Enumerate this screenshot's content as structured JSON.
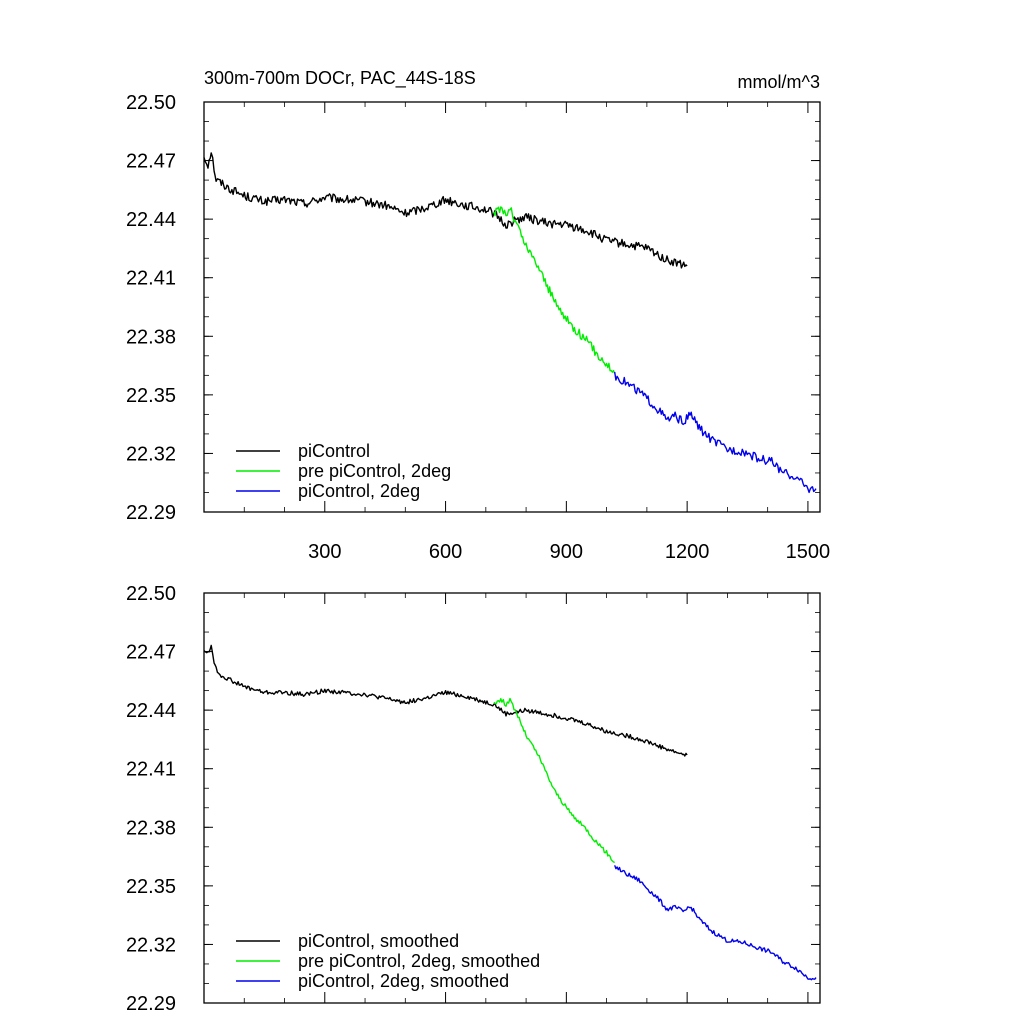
{
  "colors": {
    "black": "#000000",
    "green": "#00ee00",
    "blue": "#0000ee"
  },
  "header": {
    "title": "300m-700m DOCr, PAC_44S-18S",
    "units": "mmol/m^3"
  },
  "chart_data": [
    {
      "type": "line",
      "title": "300m-700m DOCr, PAC_44S-18S",
      "units": "mmol/m^3",
      "xlim": [
        0,
        1530
      ],
      "ylim": [
        22.29,
        22.5
      ],
      "xticks": [
        300,
        600,
        900,
        1200,
        1500
      ],
      "xtick_labels": [
        "300",
        "600",
        "900",
        "1200",
        "1500"
      ],
      "yticks": [
        22.29,
        22.32,
        22.35,
        22.38,
        22.41,
        22.44,
        22.47,
        22.5
      ],
      "ytick_labels": [
        "22.29",
        "22.32",
        "22.35",
        "22.38",
        "22.41",
        "22.44",
        "22.47",
        "22.50"
      ],
      "grid": false,
      "legend_position": "bottom-left",
      "series": [
        {
          "name": "piControl",
          "color": "#000000",
          "x": [
            0,
            10,
            18,
            25,
            30,
            40,
            60,
            100,
            150,
            200,
            250,
            300,
            350,
            400,
            450,
            500,
            550,
            600,
            650,
            700,
            720,
            750,
            780,
            800,
            850,
            900,
            950,
            1000,
            1050,
            1100,
            1150,
            1180,
            1200
          ],
          "y": [
            22.472,
            22.468,
            22.475,
            22.466,
            22.46,
            22.459,
            22.456,
            22.452,
            22.449,
            22.45,
            22.448,
            22.451,
            22.45,
            22.449,
            22.447,
            22.443,
            22.446,
            22.45,
            22.447,
            22.445,
            22.443,
            22.437,
            22.44,
            22.441,
            22.438,
            22.437,
            22.434,
            22.429,
            22.427,
            22.425,
            22.419,
            22.417,
            22.416
          ]
        },
        {
          "name": "pre piControl, 2deg",
          "color": "#00ee00",
          "x": [
            720,
            740,
            750,
            760,
            770,
            780,
            800,
            830,
            850,
            870,
            900,
            920,
            950,
            980,
            1000,
            1020
          ],
          "y": [
            22.443,
            22.446,
            22.442,
            22.446,
            22.44,
            22.436,
            22.426,
            22.416,
            22.407,
            22.398,
            22.389,
            22.384,
            22.378,
            22.37,
            22.366,
            22.361
          ]
        },
        {
          "name": "piControl, 2deg",
          "color": "#0000ee",
          "x": [
            1020,
            1050,
            1080,
            1100,
            1130,
            1150,
            1170,
            1190,
            1210,
            1230,
            1260,
            1300,
            1340,
            1380,
            1410,
            1440,
            1470,
            1500,
            1520
          ],
          "y": [
            22.36,
            22.356,
            22.352,
            22.348,
            22.342,
            22.337,
            22.339,
            22.336,
            22.34,
            22.333,
            22.327,
            22.322,
            22.321,
            22.317,
            22.316,
            22.31,
            22.308,
            22.302,
            22.302
          ]
        }
      ]
    },
    {
      "type": "line",
      "xlim": [
        0,
        1530
      ],
      "ylim": [
        22.29,
        22.5
      ],
      "yticks": [
        22.29,
        22.32,
        22.35,
        22.38,
        22.41,
        22.44,
        22.47,
        22.5
      ],
      "ytick_labels": [
        "22.29",
        "22.32",
        "22.35",
        "22.38",
        "22.41",
        "22.44",
        "22.47",
        "22.50"
      ],
      "grid": false,
      "legend_position": "bottom-left",
      "series": [
        {
          "name": "piControl, smoothed",
          "color": "#000000",
          "x": [
            0,
            10,
            18,
            25,
            30,
            40,
            60,
            100,
            150,
            200,
            250,
            300,
            350,
            400,
            450,
            500,
            550,
            600,
            650,
            700,
            720,
            750,
            780,
            800,
            850,
            900,
            950,
            1000,
            1050,
            1100,
            1150,
            1180,
            1200
          ],
          "y": [
            22.471,
            22.469,
            22.473,
            22.465,
            22.461,
            22.458,
            22.456,
            22.452,
            22.449,
            22.449,
            22.448,
            22.45,
            22.449,
            22.448,
            22.446,
            22.444,
            22.446,
            22.449,
            22.447,
            22.444,
            22.443,
            22.438,
            22.439,
            22.44,
            22.438,
            22.436,
            22.433,
            22.429,
            22.427,
            22.424,
            22.42,
            22.418,
            22.417
          ]
        },
        {
          "name": "pre piControl, 2deg, smoothed",
          "color": "#00ee00",
          "x": [
            720,
            740,
            750,
            760,
            770,
            780,
            800,
            830,
            850,
            870,
            900,
            920,
            950,
            980,
            1000,
            1020
          ],
          "y": [
            22.444,
            22.445,
            22.443,
            22.445,
            22.441,
            22.437,
            22.427,
            22.417,
            22.408,
            22.399,
            22.39,
            22.385,
            22.379,
            22.371,
            22.367,
            22.362
          ]
        },
        {
          "name": "piControl, 2deg, smoothed",
          "color": "#0000ee",
          "x": [
            1020,
            1050,
            1080,
            1100,
            1130,
            1150,
            1170,
            1190,
            1210,
            1230,
            1260,
            1300,
            1340,
            1380,
            1410,
            1440,
            1470,
            1500,
            1520
          ],
          "y": [
            22.36,
            22.356,
            22.353,
            22.349,
            22.343,
            22.338,
            22.339,
            22.337,
            22.339,
            22.333,
            22.327,
            22.322,
            22.321,
            22.318,
            22.316,
            22.311,
            22.308,
            22.303,
            22.303
          ]
        }
      ]
    }
  ]
}
